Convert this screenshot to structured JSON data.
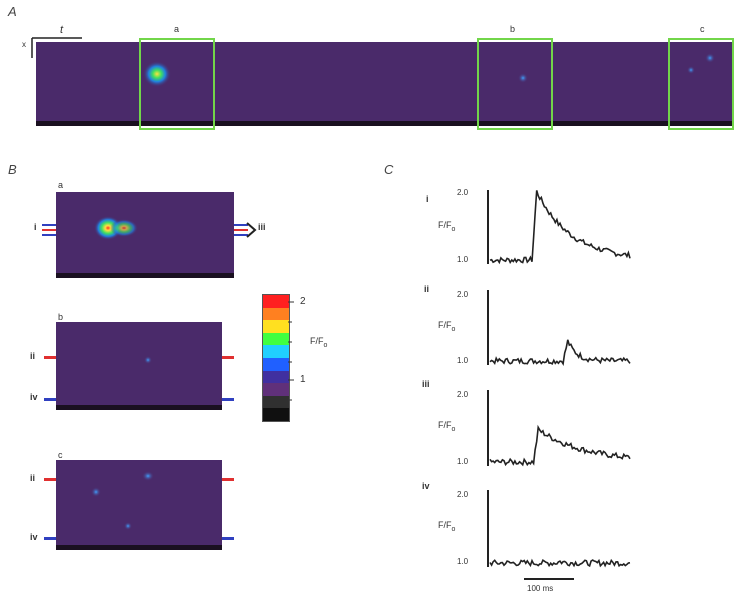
{
  "panelA": {
    "letter": "A",
    "axis_t": "t",
    "axis_x": "x",
    "box_labels": [
      "a",
      "b",
      "c"
    ]
  },
  "panelB": {
    "letter": "B",
    "images": [
      {
        "label": "a",
        "left_markers": [
          "i"
        ],
        "right_markers": [
          "iii"
        ]
      },
      {
        "label": "b",
        "left_markers": [
          "ii",
          "iv"
        ]
      },
      {
        "label": "c",
        "left_markers": [
          "ii",
          "iv"
        ]
      }
    ],
    "colorbar": {
      "ticks": [
        "2",
        "1"
      ],
      "label": "F/F",
      "label_sub": "o",
      "colors": [
        "#ff2020",
        "#ff8020",
        "#ffe020",
        "#40ff40",
        "#20d0ff",
        "#2060ff",
        "#4030a0",
        "#60307a",
        "#303030",
        "#101010"
      ]
    },
    "marker_colors": {
      "red": "#e03030",
      "blue": "#3040c0"
    }
  },
  "panelC": {
    "letter": "C",
    "traces": [
      {
        "label": "i",
        "y_top": "2.0",
        "y_bottom": "1.0",
        "ylabel": "F/F",
        "ylabel_sub": "o"
      },
      {
        "label": "ii",
        "y_top": "2.0",
        "y_bottom": "1.0",
        "ylabel": "F/F",
        "ylabel_sub": "o"
      },
      {
        "label": "iii",
        "y_top": "2.0",
        "y_bottom": "1.0",
        "ylabel": "F/F",
        "ylabel_sub": "o"
      },
      {
        "label": "iv",
        "y_top": "2.0",
        "y_bottom": "1.0",
        "ylabel": "F/F",
        "ylabel_sub": "o"
      }
    ],
    "scale_bar": "100 ms"
  }
}
